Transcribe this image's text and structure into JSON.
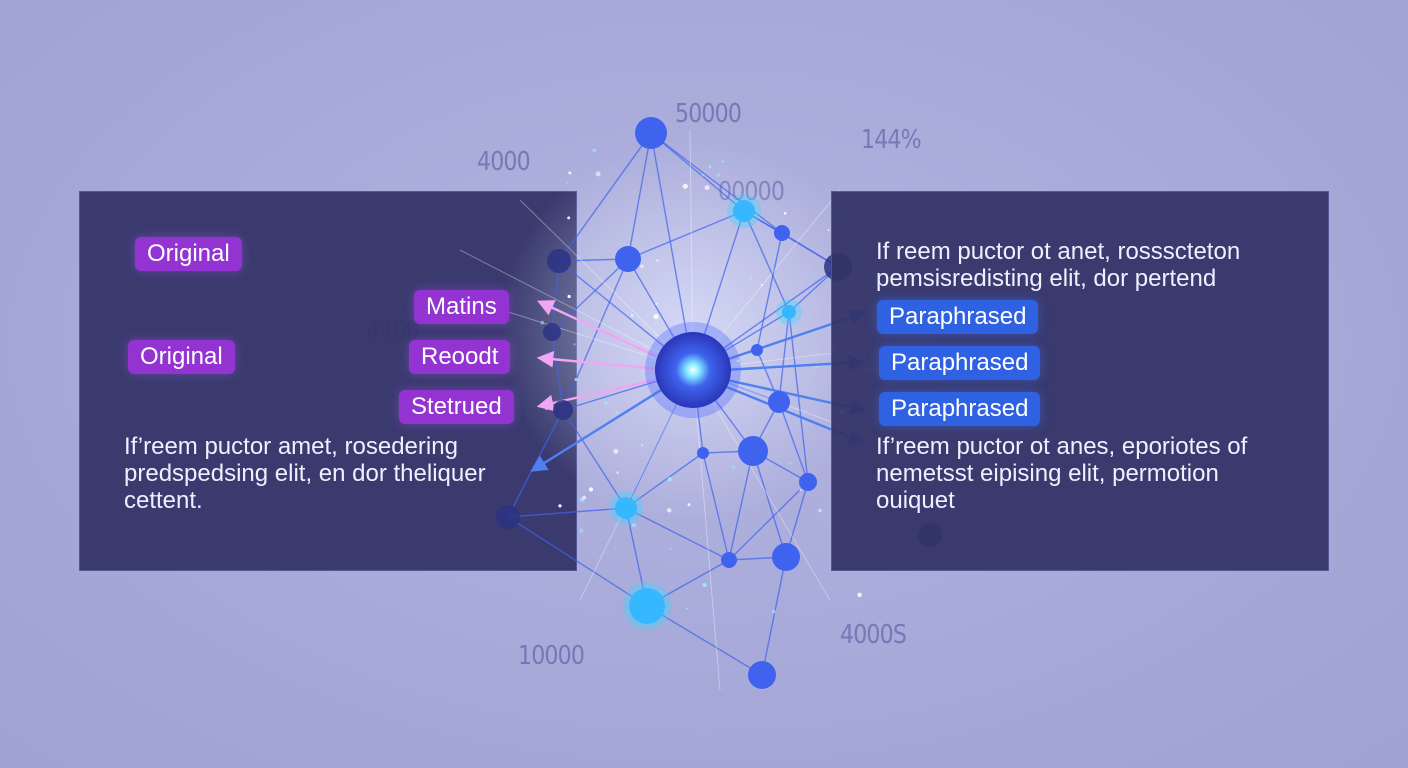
{
  "left_panel": {
    "tags": [
      "Original",
      "Original"
    ],
    "text": [
      "If’reem puctor amet, rosedering",
      "predspedsing elit, en dor theliquer",
      "cettent."
    ]
  },
  "middle_tags": [
    "Matins",
    "Reoodt",
    "Stetrued"
  ],
  "right_panel": {
    "text_top": [
      "If reem puctor ot anet, rossscteton",
      "pemsisredisting elit, dor pertend"
    ],
    "tags": [
      "Paraphrased",
      "Paraphrased",
      "Paraphrased"
    ],
    "text_bottom": [
      "If’reem puctor ot anes, eporiotes of",
      "nemetsst eipising elit, permotion",
      "ouiquet"
    ]
  },
  "floating_numbers": [
    "50000",
    "4000",
    "144%",
    "00000",
    "4400",
    "10000",
    "4000S"
  ],
  "colors": {
    "background": "#aaacdb",
    "panel": "#323266",
    "tag_purple": "#9334d2",
    "tag_blue": "#2f61e3",
    "node_blue": "#3f63ee",
    "node_cyan": "#36d6ff",
    "arrow_pink": "#f0a6f2",
    "arrow_blue": "#4f7ff0"
  }
}
